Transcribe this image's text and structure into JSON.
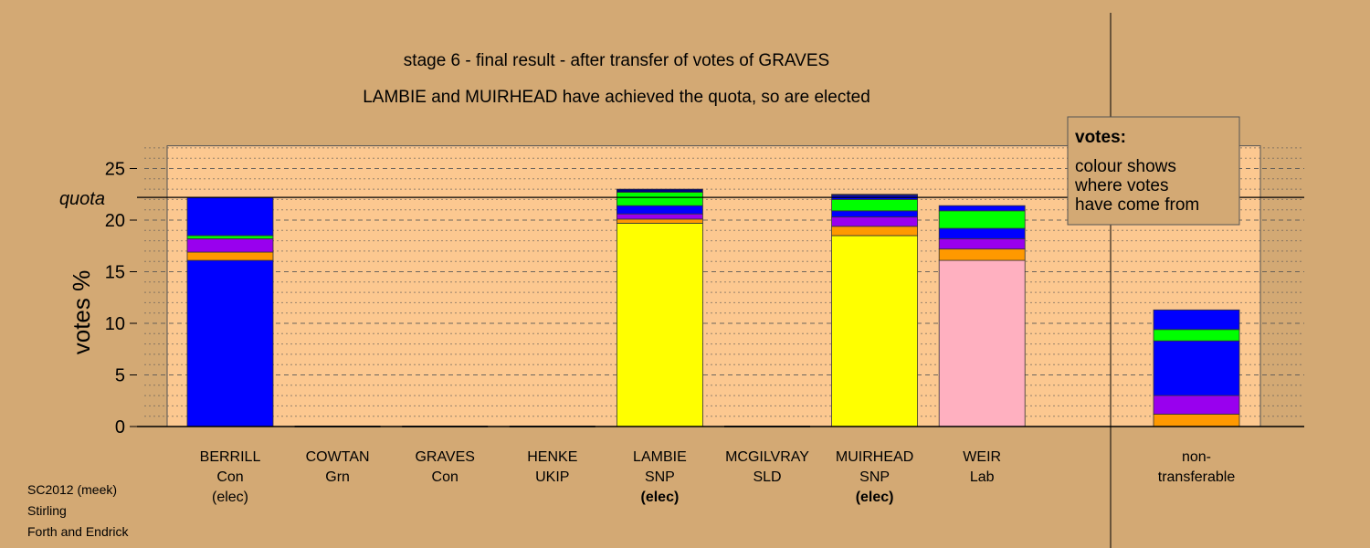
{
  "chart_data": {
    "type": "bar",
    "title": "stage 6 - final result - after transfer of votes of GRAVES",
    "subtitle": "LAMBIE and MUIRHEAD have achieved the quota, so are elected",
    "ylabel": "votes %",
    "ylim": [
      0,
      27.2
    ],
    "yticks": [
      0,
      5,
      10,
      15,
      20,
      25
    ],
    "quota": 22.2,
    "quota_label": "quota",
    "grid": true,
    "legend": {
      "title": "votes:",
      "lines": [
        "colour shows",
        "where votes",
        "have come from"
      ],
      "position": "top-right"
    },
    "source_colors": {
      "con": "#0000ff",
      "snp": "#ffff00",
      "lab": "#ffb0c0",
      "grn": "#00ff00",
      "sld": "#ff9900",
      "ukip": "#9900ee",
      "dark": "#000080"
    },
    "candidates": [
      {
        "name": "BERRILL",
        "party": "Con",
        "status": "(elec)",
        "status_bold": false,
        "segments": [
          [
            "con",
            16.1
          ],
          [
            "sld",
            0.8
          ],
          [
            "ukip",
            1.3
          ],
          [
            "grn",
            0.3
          ],
          [
            "con",
            3.7
          ]
        ]
      },
      {
        "name": "COWTAN",
        "party": "Grn",
        "status": "",
        "status_bold": false,
        "segments": []
      },
      {
        "name": "GRAVES",
        "party": "Con",
        "status": "",
        "status_bold": false,
        "segments": []
      },
      {
        "name": "HENKE",
        "party": "UKIP",
        "status": "",
        "status_bold": false,
        "segments": []
      },
      {
        "name": "LAMBIE",
        "party": "SNP",
        "status": "(elec)",
        "status_bold": true,
        "segments": [
          [
            "snp",
            19.7
          ],
          [
            "sld",
            0.4
          ],
          [
            "ukip",
            0.5
          ],
          [
            "con",
            0.8
          ],
          [
            "grn",
            1.3
          ],
          [
            "dark",
            0.3
          ]
        ]
      },
      {
        "name": "MCGILVRAY",
        "party": "SLD",
        "status": "",
        "status_bold": false,
        "segments": []
      },
      {
        "name": "MUIRHEAD",
        "party": "SNP",
        "status": "(elec)",
        "status_bold": true,
        "segments": [
          [
            "snp",
            18.5
          ],
          [
            "sld",
            0.9
          ],
          [
            "ukip",
            0.9
          ],
          [
            "con",
            0.6
          ],
          [
            "grn",
            1.1
          ],
          [
            "con",
            0.4
          ],
          [
            "dark",
            0.1
          ]
        ]
      },
      {
        "name": "WEIR",
        "party": "Lab",
        "status": "",
        "status_bold": false,
        "segments": [
          [
            "lab",
            16.1
          ],
          [
            "sld",
            1.1
          ],
          [
            "ukip",
            1.0
          ],
          [
            "con",
            1.0
          ],
          [
            "grn",
            1.7
          ],
          [
            "con",
            0.5
          ]
        ]
      }
    ],
    "non_transferable": {
      "label_lines": [
        "non-",
        "transferable"
      ],
      "segments": [
        [
          "sld",
          1.2
        ],
        [
          "ukip",
          1.8
        ],
        [
          "con",
          5.3
        ],
        [
          "grn",
          1.1
        ],
        [
          "con",
          1.9
        ]
      ]
    }
  },
  "footer": {
    "line1": "SC2012 (meek)",
    "line2": "Stirling",
    "line3": "Forth and Endrick"
  }
}
